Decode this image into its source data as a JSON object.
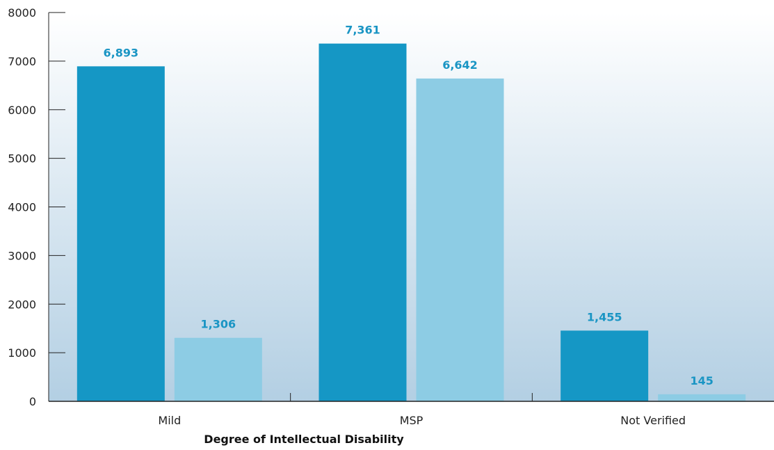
{
  "chart_data": {
    "type": "bar",
    "title": "",
    "xlabel": "Degree of Intellectual Disability",
    "ylabel": "",
    "categories": [
      "Mild",
      "MSP",
      "Not Verified"
    ],
    "series": [
      {
        "values": [
          6893,
          7361,
          1455
        ],
        "labels": [
          "6,893",
          "7,361",
          "1,455"
        ],
        "color": "#1597c5"
      },
      {
        "values": [
          1306,
          6642,
          145
        ],
        "labels": [
          "1,306",
          "6,642",
          "145"
        ],
        "color": "#8dcce4"
      }
    ],
    "ylim": [
      0,
      8000
    ],
    "yticks": [
      0,
      1000,
      2000,
      3000,
      4000,
      5000,
      6000,
      7000,
      8000
    ],
    "ytick_labels": [
      "0",
      "1000",
      "2000",
      "3000",
      "4000",
      "5000",
      "6000",
      "7000",
      "8000"
    ],
    "grid": false,
    "legend": "none",
    "colors": {
      "background_top": "#ffffff",
      "background_bottom": "#b3cfe3",
      "axis": "#222222",
      "data_label": "#1a95c4"
    }
  }
}
